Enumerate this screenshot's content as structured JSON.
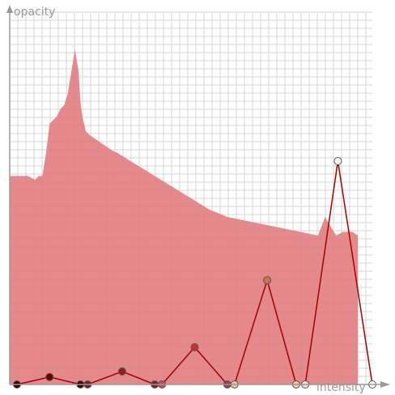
{
  "editor": {
    "y_axis_label": "opacity",
    "x_axis_label": "intensity",
    "histogram_color": "#e07a7c",
    "curve_color": "#a30000"
  },
  "chart_data": {
    "type": "area",
    "x_range": [
      0,
      1
    ],
    "y_range": [
      0,
      1
    ],
    "grid": true,
    "histogram": {
      "x": [
        0.0,
        0.02,
        0.05,
        0.07,
        0.08,
        0.09,
        0.1,
        0.11,
        0.12,
        0.13,
        0.14,
        0.15,
        0.16,
        0.17,
        0.18,
        0.19,
        0.195,
        0.2,
        0.21,
        0.22,
        0.25,
        0.28,
        0.3,
        0.35,
        0.4,
        0.45,
        0.5,
        0.55,
        0.6,
        0.65,
        0.7,
        0.75,
        0.8,
        0.85,
        0.87,
        0.9,
        0.92,
        0.945,
        0.96
      ],
      "y": [
        0.56,
        0.56,
        0.56,
        0.55,
        0.56,
        0.56,
        0.62,
        0.7,
        0.71,
        0.72,
        0.74,
        0.75,
        0.78,
        0.84,
        0.9,
        0.84,
        0.76,
        0.72,
        0.68,
        0.67,
        0.65,
        0.63,
        0.62,
        0.59,
        0.56,
        0.53,
        0.5,
        0.47,
        0.45,
        0.44,
        0.43,
        0.42,
        0.41,
        0.4,
        0.45,
        0.4,
        0.41,
        0.41,
        0.4
      ]
    },
    "transfer_function": {
      "points": [
        {
          "x": 0.02,
          "y": 0.0,
          "color": "#3c0000"
        },
        {
          "x": 0.11,
          "y": 0.02,
          "color": "#6e0000"
        },
        {
          "x": 0.195,
          "y": 0.0,
          "color": "#3c0000"
        },
        {
          "x": 0.215,
          "y": 0.0,
          "color": "#7a1a1a"
        },
        {
          "x": 0.31,
          "y": 0.035,
          "color": "#9a1a1a"
        },
        {
          "x": 0.4,
          "y": 0.0,
          "color": "#8a2020"
        },
        {
          "x": 0.42,
          "y": 0.0,
          "color": "#c05050"
        },
        {
          "x": 0.51,
          "y": 0.1,
          "color": "#c83030"
        },
        {
          "x": 0.6,
          "y": 0.0,
          "color": "#a04040"
        },
        {
          "x": 0.62,
          "y": 0.0,
          "color": "#e8c89a"
        },
        {
          "x": 0.71,
          "y": 0.28,
          "color": "#d07050"
        },
        {
          "x": 0.79,
          "y": 0.0,
          "color": "#f0c8a0"
        },
        {
          "x": 0.815,
          "y": 0.0,
          "color": "#f5e0d0"
        },
        {
          "x": 0.905,
          "y": 0.6,
          "color": "#ffffff"
        },
        {
          "x": 1.0,
          "y": 0.0,
          "color": "#ffffff"
        }
      ]
    }
  }
}
